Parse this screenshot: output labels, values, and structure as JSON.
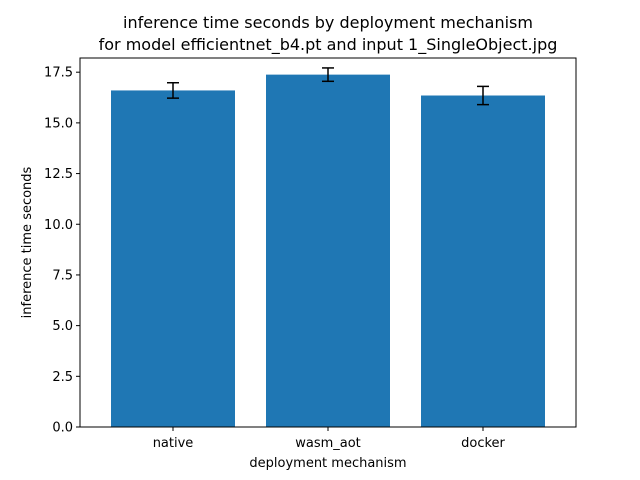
{
  "chart_data": {
    "type": "bar",
    "title": "inference time seconds by deployment mechanism",
    "subtitle": "for model efficientnet_b4.pt and input 1_SingleObject.jpg",
    "xlabel": "deployment mechanism",
    "ylabel": "inference time seconds",
    "categories": [
      "native",
      "wasm_aot",
      "docker"
    ],
    "values": [
      16.6,
      17.38,
      16.35
    ],
    "errors": [
      0.38,
      0.33,
      0.45
    ],
    "ylim": [
      0,
      18.2
    ],
    "yticks": [
      0.0,
      2.5,
      5.0,
      7.5,
      10.0,
      12.5,
      15.0,
      17.5
    ],
    "ytick_labels": [
      "0.0",
      "2.5",
      "5.0",
      "7.5",
      "10.0",
      "12.5",
      "15.0",
      "17.5"
    ],
    "bar_color": "#1f77b4",
    "grid": false,
    "legend": "none"
  }
}
